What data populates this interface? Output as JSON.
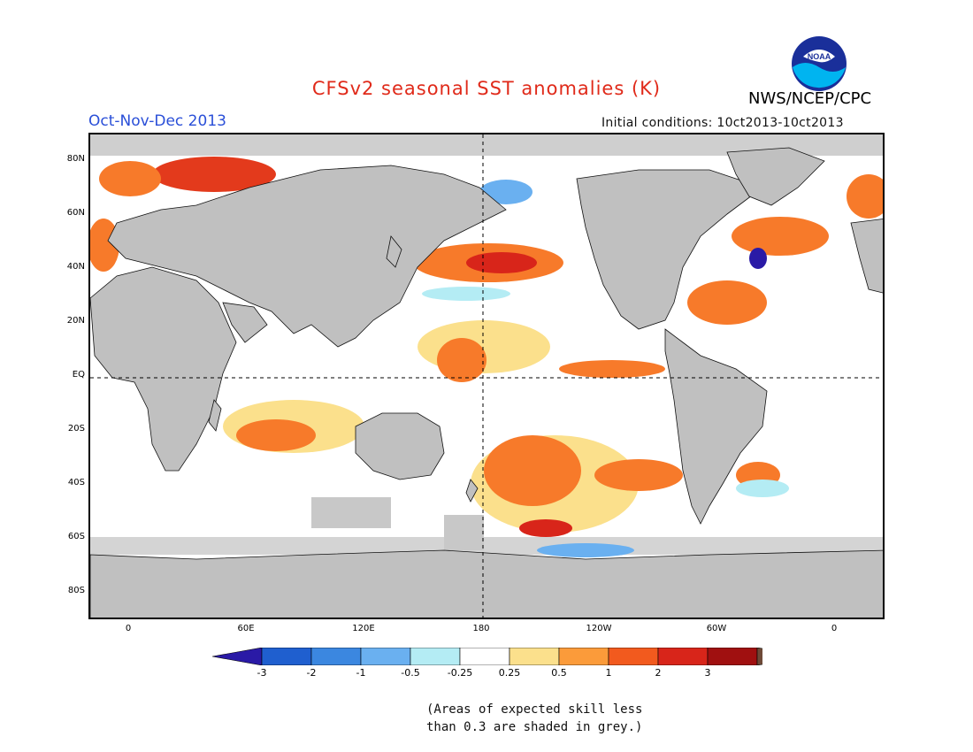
{
  "header": {
    "title": "CFSv2 seasonal SST anomalies (K)",
    "period": "Oct-Nov-Dec 2013",
    "initial_conditions": "Initial conditions: 10ct2013-10ct2013",
    "agency": "NWS/NCEP/CPC",
    "logo_text": "NOAA"
  },
  "map": {
    "lat_labels": [
      "80N",
      "60N",
      "40N",
      "20N",
      "EQ",
      "20S",
      "40S",
      "60S",
      "80S"
    ],
    "lon_labels": [
      "0",
      "60E",
      "120E",
      "180",
      "120W",
      "60W",
      "0"
    ],
    "colors": {
      "land": "#c0c0c0",
      "ocean_neutral": "#ffffff",
      "low_skill": "#bfbfbf"
    }
  },
  "colorbar": {
    "labels": [
      "-3",
      "-2",
      "-1",
      "-0.5",
      "-0.25",
      "0.25",
      "0.5",
      "1",
      "2",
      "3"
    ],
    "colors": [
      "#2a1aa6",
      "#1f5fcf",
      "#3b87e0",
      "#6ab0f0",
      "#b4ecf4",
      "#ffffff",
      "#fbe08c",
      "#fb9b3a",
      "#f25a1e",
      "#d8251a",
      "#a01010",
      "#6e4a38"
    ]
  },
  "note": {
    "line1": "(Areas of expected skill less",
    "line2": "than 0.3 are shaded in grey.)"
  }
}
